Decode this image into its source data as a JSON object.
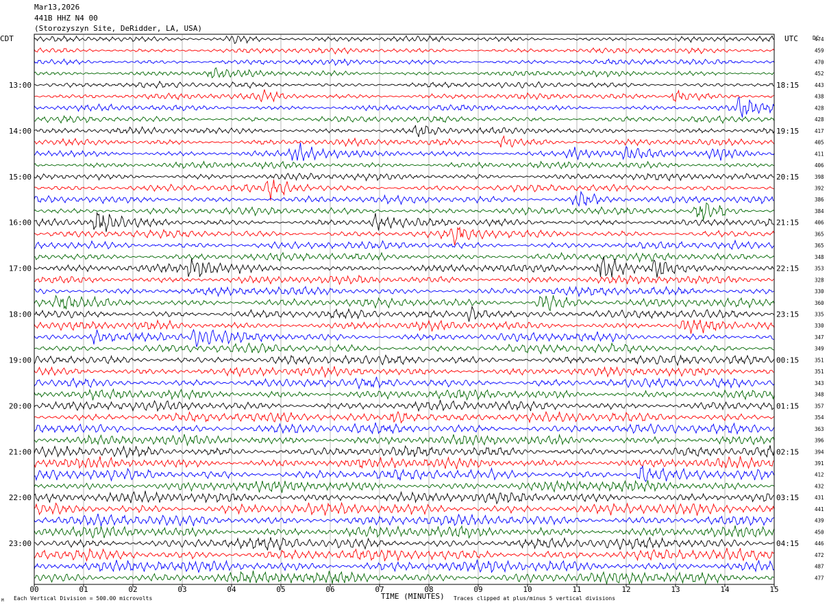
{
  "header": {
    "date": "Mar13,2026",
    "station": "441B HHZ N4 00",
    "site": "(Storozyszyn Site, DeRidder, LA, USA)"
  },
  "labels": {
    "left_zone": "CDT",
    "right_zone": "UTC",
    "dc": "DC",
    "xlabel": "TIME (MINUTES)",
    "scale_note": "Each Vertical Division =  500.00 microvolts",
    "clip_note": "Traces clipped at plus/minus 5 vertical divisions",
    "corner_mark": "M"
  },
  "colors": {
    "trace_cycle": [
      "#000000",
      "#ff0000",
      "#0000ff",
      "#006600"
    ],
    "grid": "#888888"
  },
  "chart_data": {
    "type": "line",
    "title": "",
    "x_ticks": [
      "00",
      "01",
      "02",
      "03",
      "04",
      "05",
      "06",
      "07",
      "08",
      "09",
      "10",
      "11",
      "12",
      "13",
      "14",
      "15"
    ],
    "x_range": [
      0,
      15
    ],
    "traces_per_hour": 4,
    "left_hour_labels": [
      "13:00",
      "14:00",
      "15:00",
      "16:00",
      "17:00",
      "18:00",
      "19:00",
      "20:00",
      "21:00",
      "22:00",
      "23:00"
    ],
    "right_hour_labels": [
      "18:15",
      "19:15",
      "20:15",
      "21:15",
      "22:15",
      "23:15",
      "00:15",
      "01:15",
      "02:15",
      "03:15",
      "04:15"
    ],
    "dc_values": [
      474,
      459,
      470,
      452,
      443,
      438,
      428,
      428,
      417,
      405,
      411,
      406,
      398,
      392,
      386,
      384,
      406,
      365,
      365,
      348,
      353,
      328,
      330,
      360,
      335,
      330,
      347,
      349,
      351,
      351,
      343,
      348,
      357,
      354,
      363,
      396,
      394,
      391,
      412,
      432,
      431,
      441,
      439,
      450,
      446,
      472,
      487,
      477
    ],
    "events": [
      {
        "trace": 0,
        "minute": 4.0,
        "amp": 1.2
      },
      {
        "trace": 3,
        "minute": 3.6,
        "amp": 1.0
      },
      {
        "trace": 5,
        "minute": 4.6,
        "amp": 1.0
      },
      {
        "trace": 5,
        "minute": 13.0,
        "amp": 1.6
      },
      {
        "trace": 6,
        "minute": 14.3,
        "amp": 2.2
      },
      {
        "trace": 8,
        "minute": 7.8,
        "amp": 1.0
      },
      {
        "trace": 9,
        "minute": 9.5,
        "amp": 1.3
      },
      {
        "trace": 10,
        "minute": 5.3,
        "amp": 1.8
      },
      {
        "trace": 10,
        "minute": 10.9,
        "amp": 1.2
      },
      {
        "trace": 10,
        "minute": 12.0,
        "amp": 1.0
      },
      {
        "trace": 10,
        "minute": 13.8,
        "amp": 1.0
      },
      {
        "trace": 13,
        "minute": 4.8,
        "amp": 1.8
      },
      {
        "trace": 14,
        "minute": 11.0,
        "amp": 1.6
      },
      {
        "trace": 15,
        "minute": 13.5,
        "amp": 1.8
      },
      {
        "trace": 16,
        "minute": 1.3,
        "amp": 1.8
      },
      {
        "trace": 16,
        "minute": 6.9,
        "amp": 1.1
      },
      {
        "trace": 17,
        "minute": 8.5,
        "amp": 1.3
      },
      {
        "trace": 20,
        "minute": 3.2,
        "amp": 1.7
      },
      {
        "trace": 20,
        "minute": 11.5,
        "amp": 2.0
      },
      {
        "trace": 20,
        "minute": 12.6,
        "amp": 2.0
      },
      {
        "trace": 23,
        "minute": 0.5,
        "amp": 1.0
      },
      {
        "trace": 23,
        "minute": 10.3,
        "amp": 1.4
      },
      {
        "trace": 24,
        "minute": 8.8,
        "amp": 1.3
      },
      {
        "trace": 25,
        "minute": 13.2,
        "amp": 1.0
      },
      {
        "trace": 26,
        "minute": 1.2,
        "amp": 1.0
      },
      {
        "trace": 26,
        "minute": 3.3,
        "amp": 1.6
      },
      {
        "trace": 33,
        "minute": 7.3,
        "amp": 1.0
      },
      {
        "trace": 38,
        "minute": 12.3,
        "amp": 1.0
      }
    ]
  }
}
